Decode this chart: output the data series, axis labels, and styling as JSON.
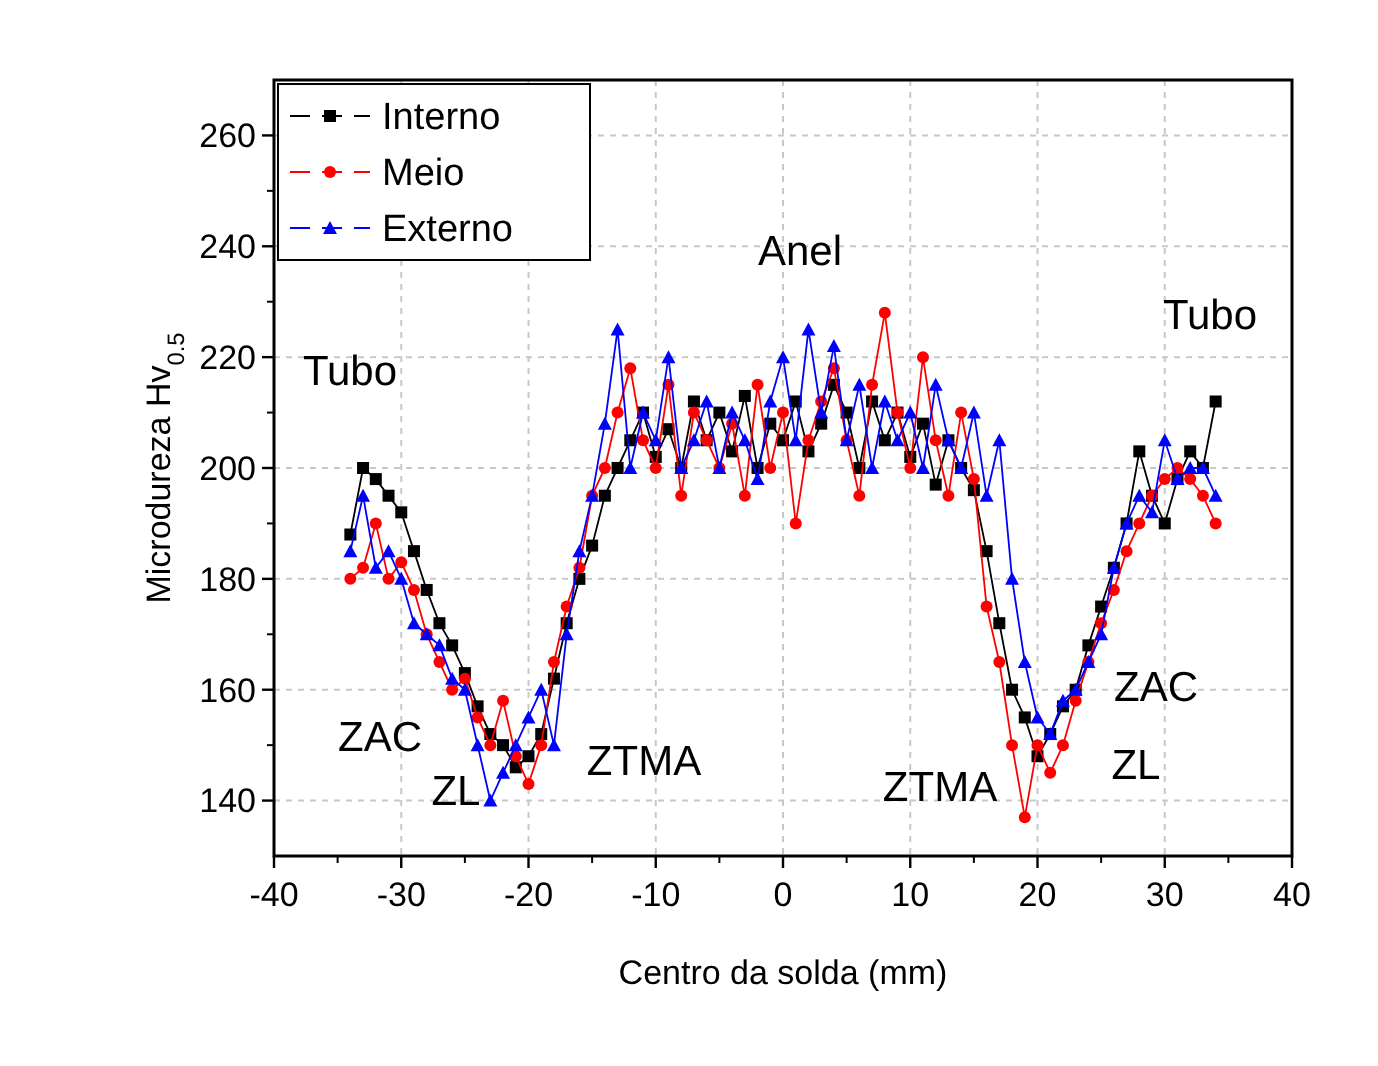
{
  "chart_data": {
    "type": "line",
    "xlabel": "Centro da solda (mm)",
    "ylabel": "Microdureza Hv$_{0.5}$",
    "x": [
      -34,
      -33,
      -32,
      -31,
      -30,
      -29,
      -28,
      -27,
      -26,
      -25,
      -24,
      -23,
      -22,
      -21,
      -20,
      -19,
      -18,
      -17,
      -16,
      -15,
      -14,
      -13,
      -12,
      -11,
      -10,
      -9,
      -8,
      -7,
      -6,
      -5,
      -4,
      -3,
      -2,
      -1,
      0,
      1,
      2,
      3,
      4,
      5,
      6,
      7,
      8,
      9,
      10,
      11,
      12,
      13,
      14,
      15,
      16,
      17,
      18,
      19,
      20,
      21,
      22,
      23,
      24,
      25,
      26,
      27,
      28,
      29,
      30,
      31,
      32,
      33,
      34
    ],
    "series": [
      {
        "name": "Interno",
        "color": "#000000",
        "marker": "square",
        "values": [
          188,
          200,
          198,
          195,
          192,
          185,
          178,
          172,
          168,
          163,
          157,
          152,
          150,
          146,
          148,
          152,
          162,
          172,
          180,
          186,
          195,
          200,
          205,
          210,
          202,
          207,
          200,
          212,
          205,
          210,
          203,
          213,
          200,
          208,
          205,
          212,
          203,
          208,
          215,
          210,
          200,
          212,
          205,
          210,
          202,
          208,
          197,
          205,
          200,
          196,
          185,
          172,
          160,
          155,
          148,
          152,
          157,
          160,
          168,
          175,
          182,
          190,
          203,
          195,
          190,
          198,
          203,
          200,
          212
        ]
      },
      {
        "name": "Meio",
        "color": "#ff0000",
        "marker": "circle",
        "values": [
          180,
          182,
          190,
          180,
          183,
          178,
          170,
          165,
          160,
          162,
          155,
          150,
          158,
          148,
          143,
          150,
          165,
          175,
          182,
          195,
          200,
          210,
          218,
          205,
          200,
          215,
          195,
          210,
          205,
          200,
          208,
          195,
          215,
          200,
          210,
          190,
          205,
          212,
          218,
          205,
          195,
          215,
          228,
          210,
          200,
          220,
          205,
          195,
          210,
          198,
          175,
          165,
          150,
          137,
          150,
          145,
          150,
          158,
          165,
          172,
          178,
          185,
          190,
          195,
          198,
          200,
          198,
          195,
          190
        ]
      },
      {
        "name": "Externo",
        "color": "#0000ff",
        "marker": "triangle",
        "values": [
          185,
          195,
          182,
          185,
          180,
          172,
          170,
          168,
          162,
          160,
          150,
          140,
          145,
          150,
          155,
          160,
          150,
          170,
          185,
          195,
          208,
          225,
          200,
          210,
          205,
          220,
          200,
          205,
          212,
          200,
          210,
          205,
          198,
          212,
          220,
          205,
          225,
          210,
          222,
          205,
          215,
          200,
          212,
          205,
          210,
          200,
          215,
          205,
          200,
          210,
          195,
          205,
          180,
          165,
          155,
          152,
          158,
          160,
          165,
          170,
          182,
          190,
          195,
          192,
          205,
          198,
          200,
          200,
          195
        ]
      }
    ],
    "xlim": [
      -40,
      40
    ],
    "xticks": [
      -40,
      -30,
      -20,
      -10,
      0,
      10,
      20,
      30,
      40
    ],
    "ylim": [
      130,
      270
    ],
    "yticks": [
      140,
      160,
      180,
      200,
      220,
      240,
      260
    ],
    "grid": true,
    "legend": "top left",
    "line_style": "solid",
    "annotations": [
      "Tubo",
      "Tubo",
      "Anel",
      "ZAC",
      "ZL",
      "ZTMA",
      "ZTMA",
      "ZAC",
      "ZL"
    ]
  }
}
